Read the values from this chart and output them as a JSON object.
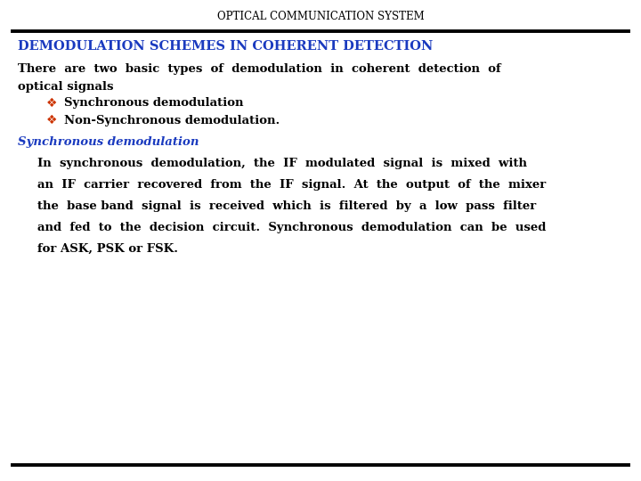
{
  "title": "OPTICAL COMMUNICATION SYSTEM",
  "title_color": "#000000",
  "title_fontsize": 8.5,
  "heading": "DEMODULATION SCHEMES IN COHERENT DETECTION",
  "heading_color": "#1a3abf",
  "heading_fontsize": 10.5,
  "body_text_1": "There  are  two  basic  types  of  demodulation  in  coherent  detection  of",
  "body_text_2": "optical signals",
  "bullet1": "Synchronous demodulation",
  "bullet2": "Non-Synchronous demodulation.",
  "subheading": "Synchronous demodulation",
  "subheading_color": "#1a3abf",
  "subheading_fontsize": 9.5,
  "para_line1": "In  synchronous  demodulation,  the  IF  modulated  signal  is  mixed  with",
  "para_line2": "an  IF  carrier  recovered  from  the  IF  signal.  At  the  output  of  the  mixer",
  "para_line3": "the  base band  signal  is  received  which  is  filtered  by  a  low  pass  filter",
  "para_line4": "and  fed  to  the  decision  circuit.  Synchronous  demodulation  can  be  used",
  "para_line5": "for ASK, PSK or FSK.",
  "bullet_color": "#cc3300",
  "body_fontsize": 9.5,
  "bg_color": "#ffffff",
  "text_color": "#000000",
  "line_color": "#000000"
}
